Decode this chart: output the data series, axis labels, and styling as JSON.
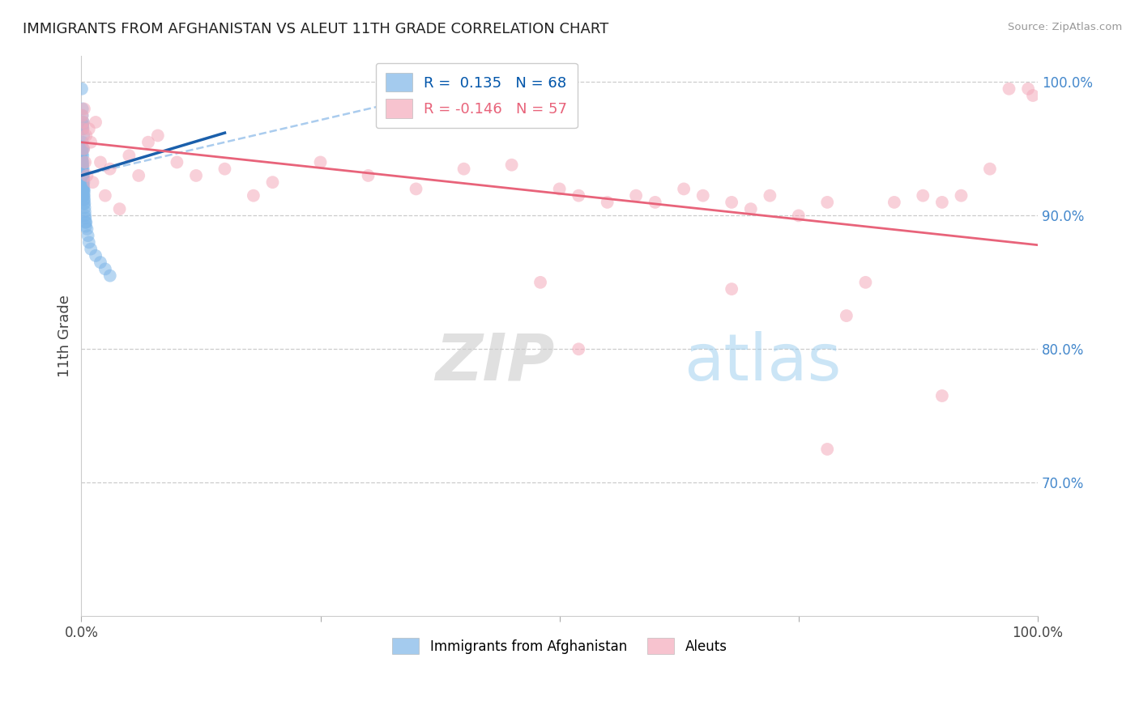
{
  "title": "IMMIGRANTS FROM AFGHANISTAN VS ALEUT 11TH GRADE CORRELATION CHART",
  "source": "Source: ZipAtlas.com",
  "ylabel": "11th Grade",
  "r_blue": 0.135,
  "n_blue": 68,
  "r_pink": -0.146,
  "n_pink": 57,
  "blue_color": "#7EB6E8",
  "pink_color": "#F4AABB",
  "blue_line_color": "#1A5FAB",
  "pink_line_color": "#E8637A",
  "blue_dashed_color": "#AACCEE",
  "y_ticks_right": [
    100.0,
    90.0,
    80.0,
    70.0
  ],
  "blue_scatter_x": [
    0.05,
    0.08,
    0.1,
    0.12,
    0.1,
    0.15,
    0.2,
    0.18,
    0.22,
    0.25,
    0.12,
    0.14,
    0.16,
    0.18,
    0.2,
    0.22,
    0.24,
    0.26,
    0.28,
    0.3,
    0.1,
    0.12,
    0.14,
    0.16,
    0.18,
    0.2,
    0.15,
    0.17,
    0.19,
    0.21,
    0.08,
    0.1,
    0.12,
    0.14,
    0.16,
    0.18,
    0.2,
    0.22,
    0.24,
    0.26,
    0.06,
    0.08,
    0.1,
    0.12,
    0.14,
    0.16,
    0.18,
    0.2,
    0.05,
    0.07,
    0.3,
    0.32,
    0.34,
    0.36,
    0.38,
    0.4,
    0.5,
    0.6,
    0.7,
    0.8,
    1.0,
    1.5,
    2.0,
    2.5,
    3.0,
    0.42,
    0.44,
    0.46
  ],
  "blue_scatter_y": [
    99.5,
    97.0,
    96.5,
    98.0,
    97.5,
    96.8,
    97.0,
    96.5,
    95.0,
    96.0,
    95.5,
    95.0,
    94.5,
    94.0,
    93.5,
    93.0,
    92.8,
    92.5,
    92.0,
    91.8,
    94.0,
    93.5,
    93.0,
    92.5,
    92.0,
    91.5,
    93.8,
    93.2,
    92.7,
    92.3,
    94.2,
    93.8,
    93.4,
    93.0,
    92.6,
    92.2,
    91.9,
    91.5,
    91.2,
    90.9,
    94.8,
    94.2,
    93.7,
    93.3,
    92.9,
    92.5,
    92.1,
    91.8,
    95.0,
    94.6,
    91.5,
    91.2,
    90.9,
    90.6,
    90.3,
    90.0,
    89.5,
    89.0,
    88.5,
    88.0,
    87.5,
    87.0,
    86.5,
    86.0,
    85.5,
    89.8,
    89.5,
    89.2
  ],
  "pink_scatter_x": [
    0.1,
    0.2,
    0.3,
    0.5,
    0.8,
    1.0,
    1.5,
    2.0,
    3.0,
    5.0,
    7.0,
    8.0,
    10.0,
    12.0,
    15.0,
    18.0,
    20.0,
    25.0,
    30.0,
    35.0,
    40.0,
    45.0,
    50.0,
    52.0,
    55.0,
    58.0,
    60.0,
    63.0,
    65.0,
    68.0,
    70.0,
    72.0,
    75.0,
    78.0,
    80.0,
    82.0,
    85.0,
    88.0,
    90.0,
    92.0,
    95.0,
    97.0,
    99.0,
    99.5,
    0.4,
    0.6,
    1.2,
    2.5,
    4.0,
    6.0,
    48.0,
    52.0,
    68.0,
    78.0,
    90.0,
    0.15,
    0.25
  ],
  "pink_scatter_y": [
    97.5,
    97.0,
    98.0,
    96.0,
    96.5,
    95.5,
    97.0,
    94.0,
    93.5,
    94.5,
    95.5,
    96.0,
    94.0,
    93.0,
    93.5,
    91.5,
    92.5,
    94.0,
    93.0,
    92.0,
    93.5,
    93.8,
    92.0,
    91.5,
    91.0,
    91.5,
    91.0,
    92.0,
    91.5,
    91.0,
    90.5,
    91.5,
    90.0,
    91.0,
    82.5,
    85.0,
    91.0,
    91.5,
    91.0,
    91.5,
    93.5,
    99.5,
    99.5,
    99.0,
    94.0,
    93.0,
    92.5,
    91.5,
    90.5,
    93.0,
    85.0,
    80.0,
    84.5,
    72.5,
    76.5,
    96.5,
    95.0
  ]
}
